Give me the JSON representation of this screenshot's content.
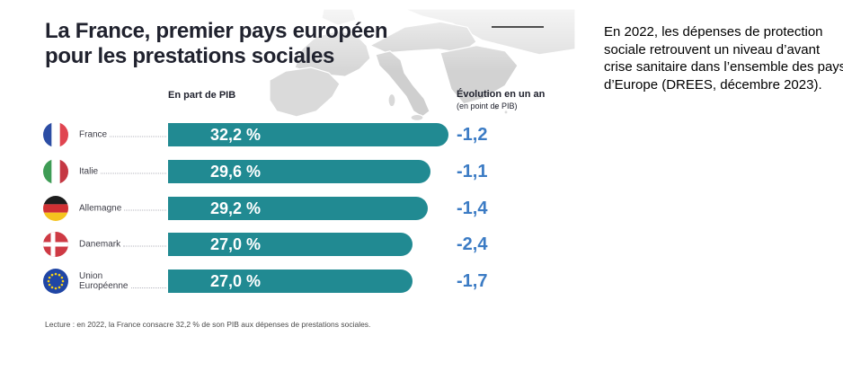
{
  "title": {
    "line1": "La France, premier pays européen",
    "line2": "pour les prestations sociales"
  },
  "headers": {
    "share": "En part de PIB",
    "evolution": "Évolution en un an",
    "evolution_sub": "(en point de PIB)"
  },
  "rows": [
    {
      "country": "France",
      "share": "32,2 %",
      "evolution": "-1,2"
    },
    {
      "country": "Italie",
      "share": "29,6 %",
      "evolution": "-1,1"
    },
    {
      "country": "Allemagne",
      "share": "29,2 %",
      "evolution": "-1,4"
    },
    {
      "country": "Danemark",
      "share": "27,0 %",
      "evolution": "-2,4"
    },
    {
      "country": "Union",
      "country_line2": "Européenne",
      "share": "27,0 %",
      "evolution": "-1,7"
    }
  ],
  "footnote": "Lecture : en 2022, la France consacre 32,2 % de son PIB aux dépenses de prestations sociales.",
  "side_note": "En 2022, les dépenses de protection sociale retrouvent un niveau d’avant crise sanitaire dans l’ensemble des pays d’Europe (DREES, décembre 2023).",
  "colors": {
    "bar": "#218a92",
    "evolution_text": "#3b7bc4",
    "title_text": "#20222e",
    "map_grey": "#d6d6d6"
  },
  "chart_data": {
    "type": "bar",
    "orientation": "horizontal",
    "title": "La France, premier pays européen pour les prestations sociales",
    "categories": [
      "France",
      "Italie",
      "Allemagne",
      "Danemark",
      "Union Européenne"
    ],
    "series": [
      {
        "name": "En part de PIB",
        "unit": "%",
        "values": [
          32.2,
          29.6,
          29.2,
          27.0,
          27.0
        ]
      },
      {
        "name": "Évolution en un an (en point de PIB)",
        "unit": "point de PIB",
        "values": [
          -1.2,
          -1.1,
          -1.4,
          -2.4,
          -1.7
        ]
      }
    ],
    "value_labels": [
      "32,2 %",
      "29,6 %",
      "29,2 %",
      "27,0 %",
      "27,0 %"
    ],
    "evolution_labels": [
      "-1,2",
      "-1,1",
      "-1,4",
      "-2,4",
      "-1,7"
    ],
    "xlabel": "En part de PIB",
    "ylabel": "",
    "legend_position": "none",
    "grid": false,
    "footnote": "Lecture : en 2022, la France consacre 32,2 % de son PIB aux dépenses de prestations sociales."
  }
}
